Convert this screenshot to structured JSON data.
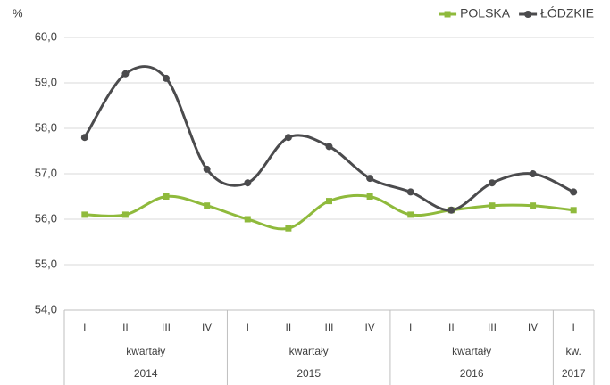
{
  "chart_data": {
    "type": "line",
    "y_unit": "%",
    "groups": [
      {
        "label": "kwartały",
        "year": "2014",
        "categories": [
          "I",
          "II",
          "III",
          "IV"
        ]
      },
      {
        "label": "kwartały",
        "year": "2015",
        "categories": [
          "I",
          "II",
          "III",
          "IV"
        ]
      },
      {
        "label": "kwartały",
        "year": "2016",
        "categories": [
          "I",
          "II",
          "III",
          "IV"
        ]
      },
      {
        "label": "kw.",
        "year": "2017",
        "categories": [
          "I"
        ]
      }
    ],
    "series": [
      {
        "name": "POLSKA",
        "color": "#8fba3c",
        "marker": "square",
        "values": [
          56.1,
          56.1,
          56.5,
          56.3,
          56.0,
          55.8,
          56.4,
          56.5,
          56.1,
          56.2,
          56.3,
          56.3,
          56.2
        ]
      },
      {
        "name": "ŁÓDZKIE",
        "color": "#4b4b4d",
        "marker": "circle",
        "values": [
          57.8,
          59.2,
          59.1,
          57.1,
          56.8,
          57.8,
          57.6,
          56.9,
          56.6,
          56.2,
          56.8,
          57.0,
          56.6
        ]
      }
    ],
    "ylim": [
      54,
      60
    ],
    "yticks": [
      {
        "value": 54,
        "label": "54,0"
      },
      {
        "value": 55,
        "label": "55,0"
      },
      {
        "value": 56,
        "label": "56,0"
      },
      {
        "value": 57,
        "label": "57,0"
      },
      {
        "value": 58,
        "label": "58,0"
      },
      {
        "value": 59,
        "label": "59,0"
      },
      {
        "value": 60,
        "label": "60,0"
      }
    ],
    "grid": true,
    "smooth": true,
    "legend": "top-right"
  }
}
